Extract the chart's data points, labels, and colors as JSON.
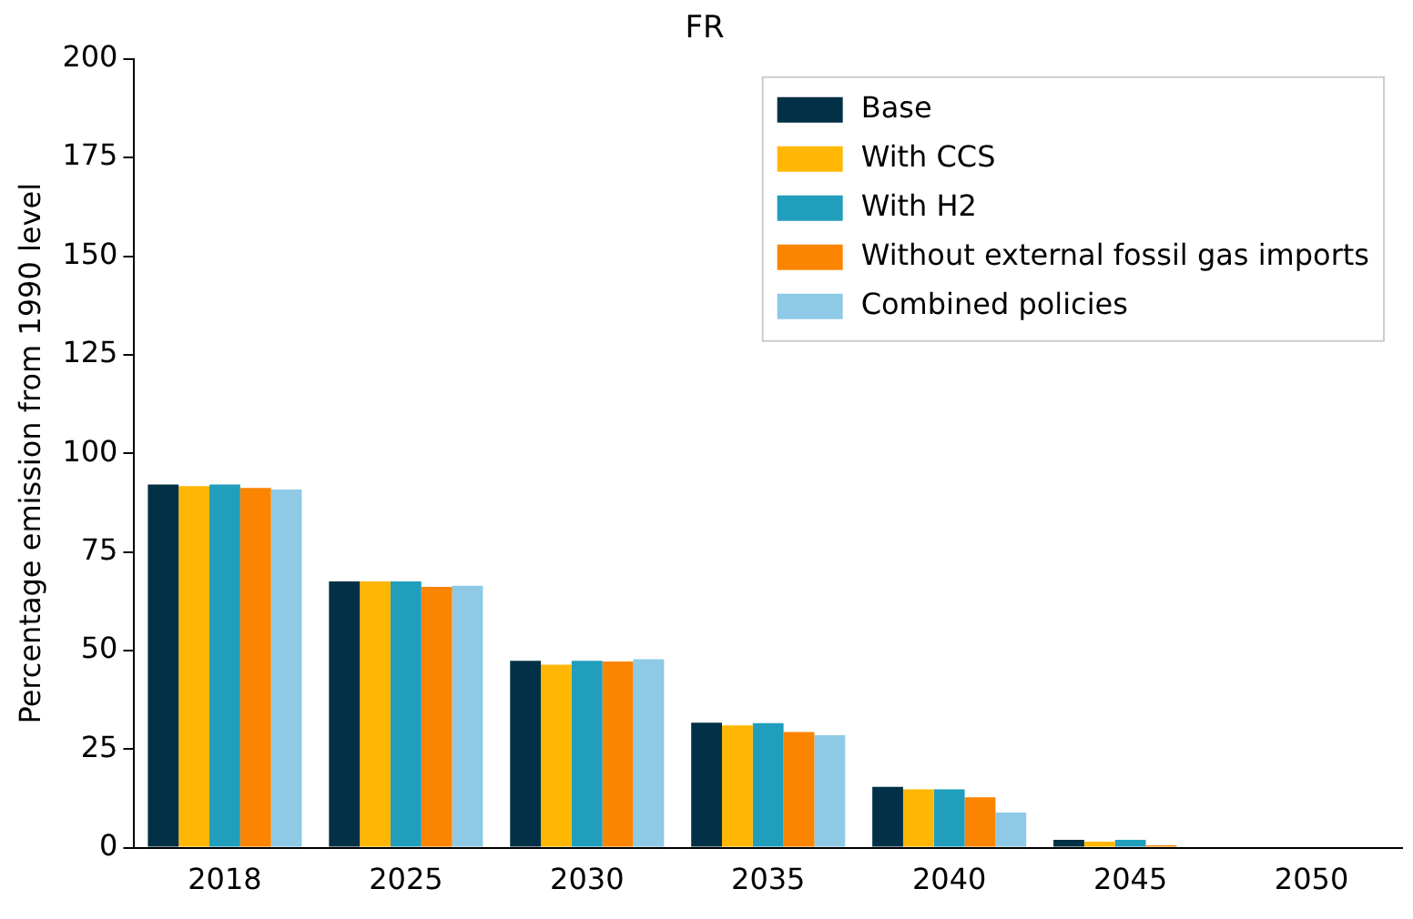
{
  "chart_data": {
    "type": "bar",
    "title": "FR",
    "ylabel": "Percentage emission from 1990 level",
    "categories": [
      "2018",
      "2025",
      "2030",
      "2035",
      "2040",
      "2045",
      "2050"
    ],
    "series": [
      {
        "name": "Base",
        "color": "#023047",
        "values": [
          92.1,
          67.5,
          47.4,
          31.7,
          15.4,
          2.0,
          0
        ]
      },
      {
        "name": "With CCS",
        "color": "#ffb703",
        "values": [
          91.7,
          67.5,
          46.4,
          31.0,
          14.8,
          1.5,
          0
        ]
      },
      {
        "name": "With H2",
        "color": "#219ebc",
        "values": [
          92.1,
          67.5,
          47.4,
          31.6,
          14.8,
          2.0,
          0
        ]
      },
      {
        "name": "Without external fossil gas imports",
        "color": "#fb8500",
        "values": [
          91.2,
          66.1,
          47.2,
          29.3,
          12.8,
          0.6,
          0
        ]
      },
      {
        "name": "Combined policies",
        "color": "#8ecae6",
        "values": [
          90.8,
          66.4,
          47.8,
          28.5,
          8.9,
          0,
          0
        ]
      }
    ],
    "ylim": [
      0,
      200
    ],
    "yticks": [
      0,
      25,
      50,
      75,
      100,
      125,
      150,
      175,
      200
    ],
    "grid": false,
    "legend": "top right"
  }
}
